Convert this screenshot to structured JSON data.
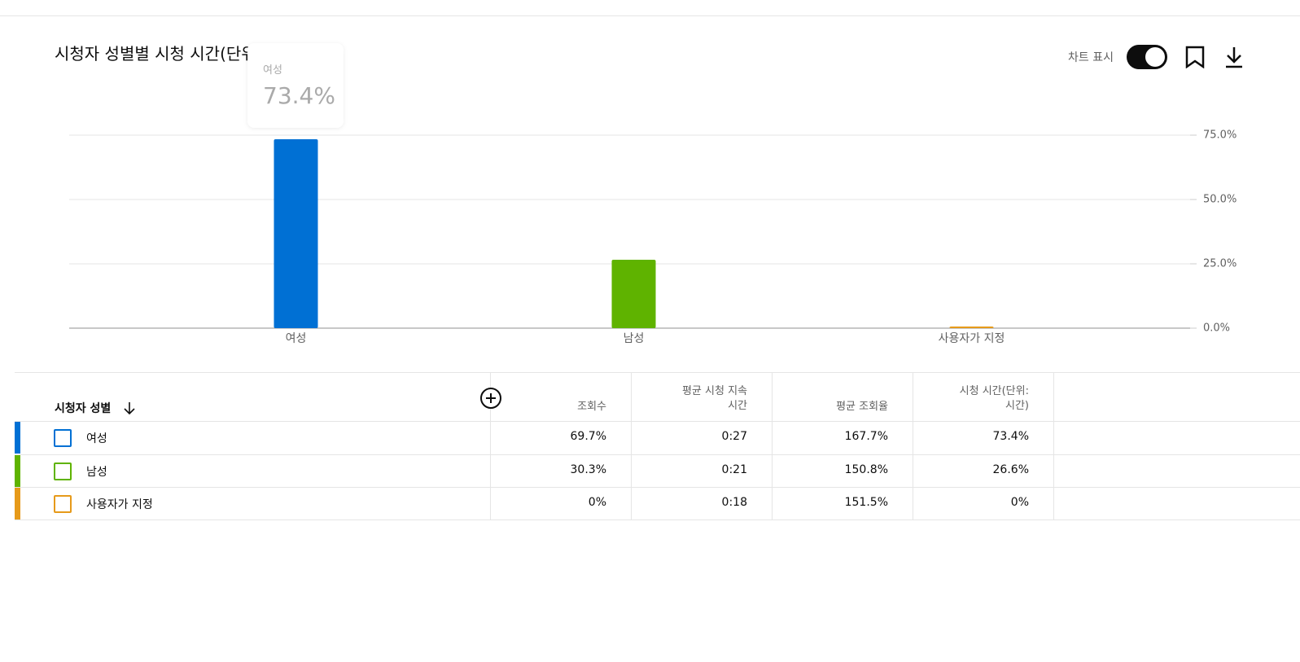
{
  "header": {
    "toggle_label": "차트 표시"
  },
  "chart_data": {
    "type": "bar",
    "title": "시청자 성별별 시청 시간(단위: 시간)",
    "categories": [
      "여성",
      "남성",
      "사용자가 지정"
    ],
    "values": [
      73.4,
      26.6,
      0
    ],
    "colors": [
      "#0070d4",
      "#5fb300",
      "#e69a1a"
    ],
    "ylim": [
      0,
      75
    ],
    "yticks": [
      {
        "value": 0,
        "label": "0.0%"
      },
      {
        "value": 25,
        "label": "25.0%"
      },
      {
        "value": 50,
        "label": "50.0%"
      },
      {
        "value": 75,
        "label": "75.0%"
      }
    ],
    "grid": true,
    "tooltip": {
      "name": "여성",
      "text": "73.4%"
    }
  },
  "table": {
    "columns": [
      "시청자 성별",
      "조회수",
      "평균 시청 지속\n시간",
      "평균 조회율",
      "시청 시간(단위:\n시간)"
    ],
    "rows": [
      {
        "color": "#0070d4",
        "cells": [
          "여성",
          "69.7%",
          "0:27",
          "167.7%",
          "73.4%"
        ]
      },
      {
        "color": "#5fb300",
        "cells": [
          "남성",
          "30.3%",
          "0:21",
          "150.8%",
          "26.6%"
        ]
      },
      {
        "color": "#e69a1a",
        "cells": [
          "사용자가 지정",
          "0%",
          "0:18",
          "151.5%",
          "0%"
        ]
      }
    ]
  }
}
